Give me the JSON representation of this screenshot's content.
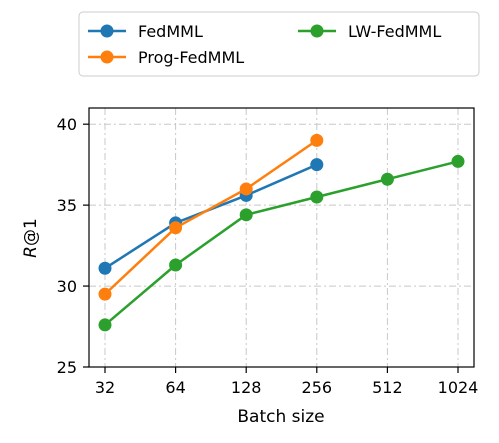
{
  "chart_data": {
    "type": "line",
    "xlabel": "Batch size",
    "ylabel_prefix": "R",
    "ylabel_suffix": "@1",
    "x_scale": "log2",
    "categories": [
      "32",
      "64",
      "128",
      "256",
      "512",
      "1024"
    ],
    "x": [
      32,
      64,
      128,
      256,
      512,
      1024
    ],
    "ylim": [
      25,
      41
    ],
    "yticks": [
      25,
      30,
      35,
      40
    ],
    "ytick_labels": [
      "25",
      "30",
      "35",
      "40"
    ],
    "grid": true,
    "legend_placement": "top, above plot",
    "series": [
      {
        "name": "FedMML",
        "color": "#1f77b4",
        "x": [
          32,
          64,
          128,
          256
        ],
        "values": [
          31.1,
          33.9,
          35.6,
          37.5
        ]
      },
      {
        "name": "Prog-FedMML",
        "color": "#ff7f0e",
        "x": [
          32,
          64,
          128,
          256
        ],
        "values": [
          29.5,
          33.6,
          36.0,
          39.0
        ]
      },
      {
        "name": "LW-FedMML",
        "color": "#2ca02c",
        "x": [
          32,
          64,
          128,
          256,
          512,
          1024
        ],
        "values": [
          27.6,
          31.3,
          34.4,
          35.5,
          36.6,
          37.7
        ]
      }
    ]
  }
}
